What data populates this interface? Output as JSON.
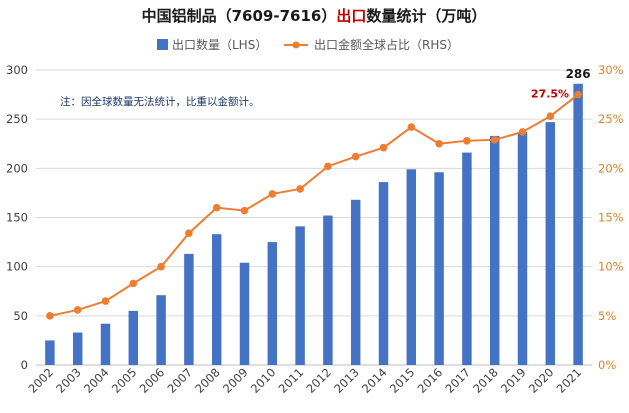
{
  "title": {
    "part1": "中国铝制品（7609-7616）",
    "part2": "出口",
    "part3": "数量统计（万吨）"
  },
  "legend": {
    "bar": "出口数量（LHS）",
    "line": "出口金额全球占比（RHS）"
  },
  "note": "注：因全球数量无法统计，比重以金额计。",
  "colors": {
    "bar": "#4472c4",
    "line": "#ed7d31",
    "grid": "#d9d9d9",
    "right_axis_text": "#d7852e",
    "highlight_red": "#c00000"
  },
  "chart_data": {
    "type": "bar",
    "categories": [
      "2002",
      "2003",
      "2004",
      "2005",
      "2006",
      "2007",
      "2008",
      "2009",
      "2010",
      "2011",
      "2012",
      "2013",
      "2014",
      "2015",
      "2016",
      "2017",
      "2018",
      "2019",
      "2020",
      "2021"
    ],
    "series": [
      {
        "name": "出口数量（LHS）",
        "type": "bar",
        "axis": "left",
        "values": [
          25,
          33,
          42,
          55,
          71,
          113,
          133,
          104,
          125,
          141,
          152,
          168,
          186,
          199,
          196,
          216,
          233,
          237,
          247,
          286
        ]
      },
      {
        "name": "出口金额全球占比（RHS）",
        "type": "line",
        "axis": "right",
        "values": [
          5.0,
          5.6,
          6.5,
          8.3,
          10.0,
          13.4,
          16.0,
          15.7,
          17.4,
          17.9,
          20.2,
          21.2,
          22.1,
          24.2,
          22.5,
          22.8,
          22.9,
          23.7,
          25.3,
          27.5
        ]
      }
    ],
    "yleft": {
      "ticks": [
        "0",
        "50",
        "100",
        "150",
        "200",
        "250",
        "300"
      ],
      "range": [
        0,
        300
      ]
    },
    "yright": {
      "ticks": [
        "0%",
        "5%",
        "10%",
        "15%",
        "20%",
        "25%",
        "30%"
      ],
      "range": [
        0,
        30
      ]
    },
    "grid": true,
    "legend_position": "top",
    "annotations": {
      "last_bar_label": "286",
      "last_line_label": "27.5%"
    }
  }
}
